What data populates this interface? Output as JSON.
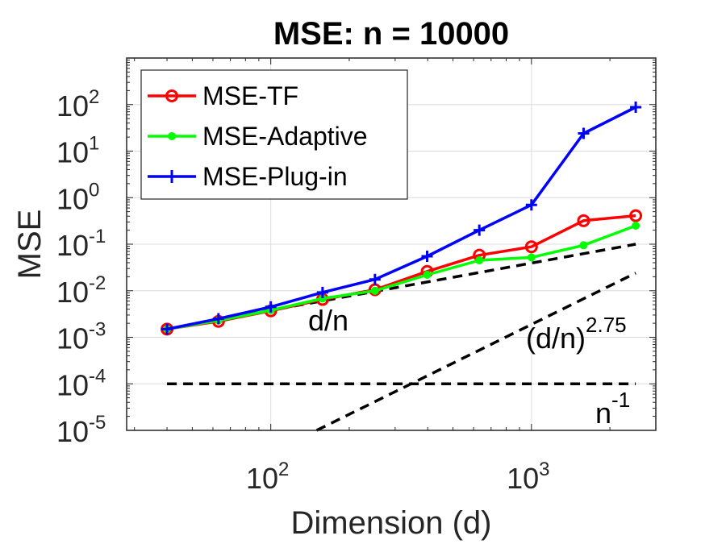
{
  "chart_data": {
    "type": "line",
    "title": "MSE: n = 10000",
    "xlabel": "Dimension (d)",
    "ylabel": "MSE",
    "xscale": "log",
    "yscale": "log",
    "xlim": [
      28,
      3000
    ],
    "ylim": [
      1e-05,
      1000
    ],
    "grid": true,
    "legend_position": "top-left",
    "x_ticks": [
      {
        "value": 100,
        "base": "10",
        "exp": "2"
      },
      {
        "value": 1000,
        "base": "10",
        "exp": "3"
      }
    ],
    "y_ticks": [
      {
        "value": 1e-05,
        "base": "10",
        "exp": "-5"
      },
      {
        "value": 0.0001,
        "base": "10",
        "exp": "-4"
      },
      {
        "value": 0.001,
        "base": "10",
        "exp": "-3"
      },
      {
        "value": 0.01,
        "base": "10",
        "exp": "-2"
      },
      {
        "value": 0.1,
        "base": "10",
        "exp": "-1"
      },
      {
        "value": 1,
        "base": "10",
        "exp": "0"
      },
      {
        "value": 10,
        "base": "10",
        "exp": "1"
      },
      {
        "value": 100,
        "base": "10",
        "exp": "2"
      }
    ],
    "x": [
      40,
      63,
      100,
      158,
      251,
      398,
      631,
      1000,
      1585,
      2512
    ],
    "series": [
      {
        "name": "MSE-TF",
        "color": "#ff0000",
        "marker": "circle",
        "values": [
          0.0015,
          0.0022,
          0.0037,
          0.0065,
          0.0105,
          0.026,
          0.058,
          0.088,
          0.32,
          0.41
        ]
      },
      {
        "name": "MSE-Adaptive",
        "color": "#00ff00",
        "marker": "dot",
        "values": [
          0.0015,
          0.0023,
          0.0038,
          0.0068,
          0.01,
          0.022,
          0.045,
          0.052,
          0.095,
          0.25
        ]
      },
      {
        "name": "MSE-Plug-in",
        "color": "#0000ff",
        "marker": "plus",
        "values": [
          0.0015,
          0.0025,
          0.0045,
          0.0092,
          0.0175,
          0.055,
          0.2,
          0.7,
          24,
          88
        ]
      }
    ],
    "reference_lines": [
      {
        "label": "d/n",
        "points": [
          [
            40,
            0.0015
          ],
          [
            2512,
            0.1
          ]
        ]
      },
      {
        "label_base": "(d/n)",
        "label_exp": "2.75",
        "points": [
          [
            150,
            1e-05
          ],
          [
            2512,
            0.024
          ]
        ]
      },
      {
        "label_base": "n",
        "label_exp": "-1",
        "points": [
          [
            40,
            0.0001
          ],
          [
            2512,
            0.0001
          ]
        ]
      }
    ]
  }
}
